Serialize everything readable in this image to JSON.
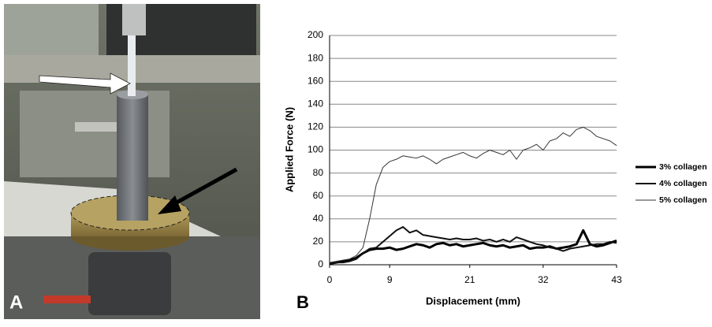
{
  "photo": {
    "label": "A"
  },
  "chart_data": {
    "type": "line",
    "panel_label": "B",
    "x_label": "Displacement (mm)",
    "y_label": "Applied Force (N)",
    "x": [
      0,
      1,
      2,
      3,
      4,
      5,
      6,
      7,
      8,
      9,
      10,
      11,
      12,
      13,
      14,
      15,
      16,
      17,
      18,
      19,
      20,
      21,
      22,
      23,
      24,
      25,
      26,
      27,
      28,
      29,
      30,
      31,
      32,
      33,
      34,
      35,
      36,
      37,
      38,
      39,
      40,
      41,
      42,
      43
    ],
    "xlim": [
      0,
      43
    ],
    "xticks": [
      0,
      9,
      21,
      32,
      43
    ],
    "ylim": [
      0,
      200
    ],
    "yticks": [
      0,
      20,
      40,
      60,
      80,
      100,
      120,
      140,
      160,
      180,
      200
    ],
    "grid": true,
    "legend": "right",
    "series": [
      {
        "name": "3% collagen",
        "color": "#000000",
        "line_width": 3,
        "values": [
          1,
          2,
          3,
          4,
          6,
          10,
          13,
          14,
          14,
          15,
          13,
          14,
          16,
          18,
          17,
          15,
          18,
          19,
          17,
          18,
          16,
          17,
          18,
          19,
          17,
          16,
          17,
          15,
          16,
          17,
          14,
          15,
          15,
          16,
          14,
          15,
          16,
          18,
          30,
          18,
          16,
          17,
          19,
          21
        ]
      },
      {
        "name": "4% collagen",
        "color": "#111111",
        "line_width": 2,
        "values": [
          1,
          2,
          2,
          3,
          5,
          10,
          14,
          15,
          20,
          25,
          30,
          33,
          28,
          30,
          26,
          25,
          24,
          23,
          22,
          23,
          22,
          22,
          23,
          21,
          22,
          20,
          22,
          20,
          24,
          22,
          20,
          18,
          17,
          15,
          14,
          12,
          14,
          15,
          16,
          17,
          18,
          18,
          20,
          19
        ]
      },
      {
        "name": "5% collagen",
        "color": "#333333",
        "line_width": 1,
        "values": [
          2,
          3,
          4,
          5,
          8,
          15,
          40,
          70,
          85,
          90,
          92,
          95,
          94,
          93,
          95,
          92,
          88,
          92,
          94,
          96,
          98,
          95,
          93,
          97,
          100,
          98,
          96,
          100,
          92,
          100,
          102,
          105,
          100,
          108,
          110,
          115,
          112,
          118,
          120,
          117,
          112,
          110,
          108,
          104
        ]
      }
    ]
  }
}
